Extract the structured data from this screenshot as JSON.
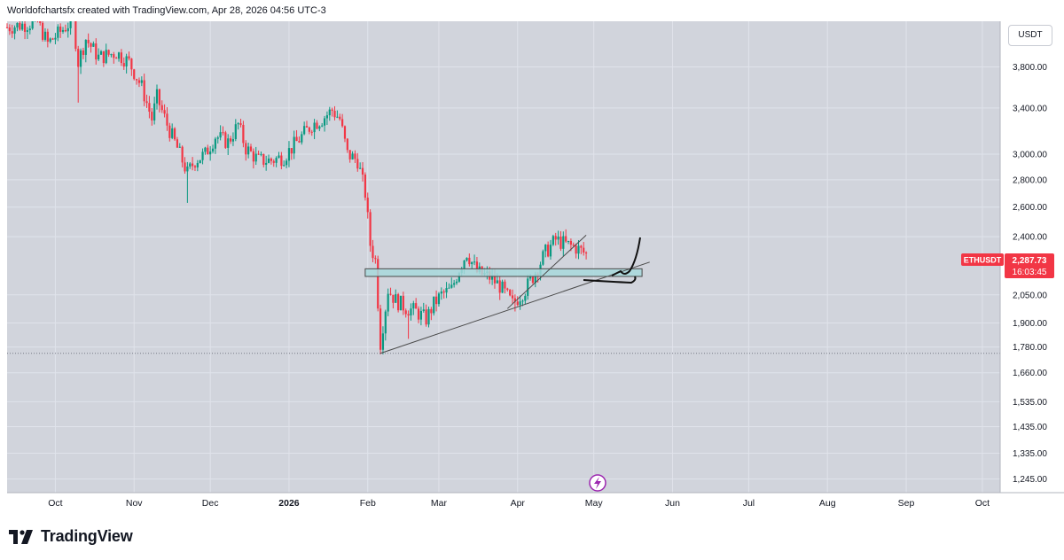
{
  "header": {
    "text": "Worldofchartsfx created with TradingView.com, Apr 28, 2026 04:56 UTC-3"
  },
  "currency": "USDT",
  "brand": "TradingView",
  "chart_data": {
    "type": "candlestick",
    "symbol": "ETHUSDT",
    "last_price": "2,287.73",
    "countdown": "16:03:45",
    "y_scale": "log",
    "y_range": [
      1200,
      4300
    ],
    "y_ticks": [
      {
        "v": 3800,
        "label": "3,800.00"
      },
      {
        "v": 3400,
        "label": "3,400.00"
      },
      {
        "v": 3000,
        "label": "3,000.00"
      },
      {
        "v": 2800,
        "label": "2,800.00"
      },
      {
        "v": 2600,
        "label": "2,600.00"
      },
      {
        "v": 2400,
        "label": "2,400.00"
      },
      {
        "v": 2050,
        "label": "2,050.00"
      },
      {
        "v": 1900,
        "label": "1,900.00"
      },
      {
        "v": 1780,
        "label": "1,780.00"
      },
      {
        "v": 1660,
        "label": "1,660.00"
      },
      {
        "v": 1535,
        "label": "1,535.00"
      },
      {
        "v": 1435,
        "label": "1,435.00"
      },
      {
        "v": 1335,
        "label": "1,335.00"
      },
      {
        "v": 1245,
        "label": "1,245.00"
      }
    ],
    "x_range": [
      "2025-09-12",
      "2026-10-08"
    ],
    "x_ticks": [
      {
        "date": "2025-10-01",
        "label": "Oct",
        "bold": false
      },
      {
        "date": "2025-11-01",
        "label": "Nov",
        "bold": false
      },
      {
        "date": "2025-12-01",
        "label": "Dec",
        "bold": false
      },
      {
        "date": "2026-01-01",
        "label": "2026",
        "bold": true
      },
      {
        "date": "2026-02-01",
        "label": "Feb",
        "bold": false
      },
      {
        "date": "2026-03-01",
        "label": "Mar",
        "bold": false
      },
      {
        "date": "2026-04-01",
        "label": "Apr",
        "bold": false
      },
      {
        "date": "2026-05-01",
        "label": "May",
        "bold": false
      },
      {
        "date": "2026-06-01",
        "label": "Jun",
        "bold": false
      },
      {
        "date": "2026-07-01",
        "label": "Jul",
        "bold": false
      },
      {
        "date": "2026-08-01",
        "label": "Aug",
        "bold": false
      },
      {
        "date": "2026-09-01",
        "label": "Sep",
        "bold": false
      },
      {
        "date": "2026-10-01",
        "label": "Oct",
        "bold": false
      }
    ],
    "path_points": [
      [
        "2025-09-12",
        4230
      ],
      [
        "2025-09-18",
        4260
      ],
      [
        "2025-09-24",
        4290
      ],
      [
        "2025-09-28",
        4050
      ],
      [
        "2025-10-03",
        4180
      ],
      [
        "2025-10-08",
        4320
      ],
      [
        "2025-10-10",
        3850
      ],
      [
        "2025-10-13",
        4100
      ],
      [
        "2025-10-18",
        3900
      ],
      [
        "2025-10-25",
        3950
      ],
      [
        "2025-10-30",
        3850
      ],
      [
        "2025-11-04",
        3600
      ],
      [
        "2025-11-08",
        3300
      ],
      [
        "2025-11-10",
        3500
      ],
      [
        "2025-11-14",
        3250
      ],
      [
        "2025-11-18",
        3050
      ],
      [
        "2025-11-22",
        2850
      ],
      [
        "2025-11-25",
        2950
      ],
      [
        "2025-11-29",
        3000
      ],
      [
        "2025-12-03",
        3150
      ],
      [
        "2025-12-08",
        3100
      ],
      [
        "2025-12-12",
        3250
      ],
      [
        "2025-12-15",
        3050
      ],
      [
        "2025-12-20",
        2950
      ],
      [
        "2025-12-25",
        2950
      ],
      [
        "2025-12-30",
        2980
      ],
      [
        "2026-01-04",
        3100
      ],
      [
        "2026-01-10",
        3250
      ],
      [
        "2026-01-14",
        3300
      ],
      [
        "2026-01-18",
        3380
      ],
      [
        "2026-01-21",
        3300
      ],
      [
        "2026-01-24",
        3000
      ],
      [
        "2026-01-28",
        2950
      ],
      [
        "2026-01-31",
        2700
      ],
      [
        "2026-02-02",
        2350
      ],
      [
        "2026-02-04",
        2250
      ],
      [
        "2026-02-06",
        1800
      ],
      [
        "2026-02-09",
        2080
      ],
      [
        "2026-02-12",
        2020
      ],
      [
        "2026-02-16",
        1980
      ],
      [
        "2026-02-20",
        1960
      ],
      [
        "2026-02-24",
        1920
      ],
      [
        "2026-02-27",
        2000
      ],
      [
        "2026-03-02",
        2050
      ],
      [
        "2026-03-06",
        2080
      ],
      [
        "2026-03-09",
        2200
      ],
      [
        "2026-03-12",
        2300
      ],
      [
        "2026-03-16",
        2180
      ],
      [
        "2026-03-21",
        2150
      ],
      [
        "2026-03-25",
        2100
      ],
      [
        "2026-03-30",
        2000
      ],
      [
        "2026-04-04",
        2080
      ],
      [
        "2026-04-08",
        2180
      ],
      [
        "2026-04-12",
        2300
      ],
      [
        "2026-04-16",
        2380
      ],
      [
        "2026-04-20",
        2350
      ],
      [
        "2026-04-24",
        2330
      ],
      [
        "2026-04-28",
        2288
      ]
    ],
    "extremes": {
      "low": [
        "2026-02-06",
        1745
      ],
      "spikes": [
        [
          "2025-10-10",
          3450
        ],
        [
          "2025-11-22",
          2630
        ],
        [
          "2026-03-31",
          1960
        ],
        [
          "2026-02-17",
          1820
        ]
      ]
    },
    "zone": {
      "from": "2026-01-31",
      "to": "2026-05-20",
      "top": 2200,
      "bottom": 2155
    },
    "support_line": [
      [
        "2026-02-06",
        1750
      ],
      [
        "2026-05-23",
        2240
      ]
    ],
    "trend_line": [
      [
        "2026-03-28",
        1975
      ],
      [
        "2026-04-28",
        2410
      ]
    ],
    "reference_price": 1750,
    "colors": {
      "up": "#089981",
      "down": "#f23645",
      "background": "#d1d4dc",
      "grid": "#e0e3eb",
      "zone": "#a8d8dc",
      "label": "#f23645"
    }
  }
}
